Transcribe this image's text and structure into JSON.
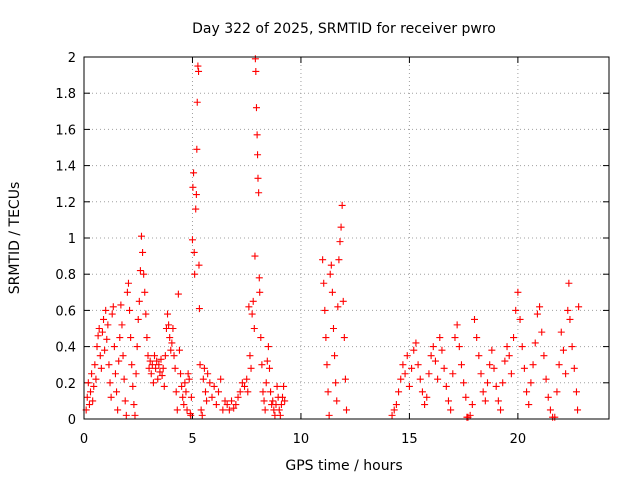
{
  "chart_data": {
    "type": "scatter",
    "title": "Day 322 of 2025, SRMTID for receiver pwro",
    "xlabel": "GPS time / hours",
    "ylabel": "SRMTID / TECUs",
    "xlim": [
      0,
      24.2
    ],
    "ylim": [
      0,
      2
    ],
    "x_ticks": [
      0,
      5,
      10,
      15,
      20
    ],
    "x_tick_labels": [
      "0",
      "5",
      "10",
      "15",
      "20"
    ],
    "y_ticks": [
      0,
      0.2,
      0.4,
      0.6,
      0.8,
      1,
      1.2,
      1.4,
      1.6,
      1.8,
      2
    ],
    "y_tick_labels": [
      "0",
      "0.2",
      "0.4",
      "0.6",
      "0.8",
      "1",
      "1.2",
      "1.4",
      "1.6",
      "1.8",
      "2"
    ],
    "grid": true,
    "marker": "+",
    "color": "#ff0000",
    "series": [
      {
        "name": "SRMTID",
        "points": [
          [
            0.1,
            0.05
          ],
          [
            0.15,
            0.12
          ],
          [
            0.2,
            0.2
          ],
          [
            0.25,
            0.08
          ],
          [
            0.3,
            0.15
          ],
          [
            0.35,
            0.25
          ],
          [
            0.4,
            0.1
          ],
          [
            0.45,
            0.18
          ],
          [
            0.5,
            0.3
          ],
          [
            0.55,
            0.22
          ],
          [
            0.6,
            0.4
          ],
          [
            0.65,
            0.46
          ],
          [
            0.7,
            0.5
          ],
          [
            0.75,
            0.35
          ],
          [
            0.8,
            0.28
          ],
          [
            0.85,
            0.48
          ],
          [
            0.9,
            0.55
          ],
          [
            0.95,
            0.38
          ],
          [
            1.0,
            0.6
          ],
          [
            1.05,
            0.44
          ],
          [
            1.1,
            0.52
          ],
          [
            1.15,
            0.3
          ],
          [
            1.2,
            0.2
          ],
          [
            1.25,
            0.12
          ],
          [
            1.3,
            0.58
          ],
          [
            1.35,
            0.62
          ],
          [
            1.4,
            0.4
          ],
          [
            1.45,
            0.25
          ],
          [
            1.5,
            0.15
          ],
          [
            1.55,
            0.05
          ],
          [
            1.6,
            0.32
          ],
          [
            1.65,
            0.45
          ],
          [
            1.7,
            0.63
          ],
          [
            1.75,
            0.52
          ],
          [
            1.8,
            0.35
          ],
          [
            1.85,
            0.22
          ],
          [
            1.9,
            0.1
          ],
          [
            1.95,
            0.02
          ],
          [
            2.0,
            0.7
          ],
          [
            2.05,
            0.75
          ],
          [
            2.1,
            0.6
          ],
          [
            2.15,
            0.45
          ],
          [
            2.2,
            0.3
          ],
          [
            2.25,
            0.18
          ],
          [
            2.3,
            0.08
          ],
          [
            2.35,
            0.02
          ],
          [
            2.4,
            0.25
          ],
          [
            2.45,
            0.4
          ],
          [
            2.5,
            0.55
          ],
          [
            2.55,
            0.65
          ],
          [
            2.6,
            0.82
          ],
          [
            2.65,
            1.01
          ],
          [
            2.7,
            0.92
          ],
          [
            2.75,
            0.8
          ],
          [
            2.8,
            0.7
          ],
          [
            2.85,
            0.58
          ],
          [
            2.9,
            0.45
          ],
          [
            2.95,
            0.35
          ],
          [
            3.0,
            0.28
          ],
          [
            3.05,
            0.32
          ],
          [
            3.1,
            0.25
          ],
          [
            3.15,
            0.3
          ],
          [
            3.2,
            0.2
          ],
          [
            3.25,
            0.35
          ],
          [
            3.3,
            0.28
          ],
          [
            3.35,
            0.32
          ],
          [
            3.4,
            0.22
          ],
          [
            3.45,
            0.3
          ],
          [
            3.5,
            0.26
          ],
          [
            3.55,
            0.33
          ],
          [
            3.6,
            0.24
          ],
          [
            3.65,
            0.28
          ],
          [
            3.7,
            0.18
          ],
          [
            3.75,
            0.35
          ],
          [
            3.8,
            0.5
          ],
          [
            3.85,
            0.58
          ],
          [
            3.9,
            0.52
          ],
          [
            3.95,
            0.45
          ],
          [
            4.0,
            0.38
          ],
          [
            4.05,
            0.42
          ],
          [
            4.1,
            0.5
          ],
          [
            4.15,
            0.35
          ],
          [
            4.2,
            0.28
          ],
          [
            4.25,
            0.15
          ],
          [
            4.3,
            0.05
          ],
          [
            4.35,
            0.69
          ],
          [
            4.4,
            0.38
          ],
          [
            4.45,
            0.25
          ],
          [
            4.5,
            0.18
          ],
          [
            4.55,
            0.12
          ],
          [
            4.6,
            0.08
          ],
          [
            4.65,
            0.2
          ],
          [
            4.7,
            0.15
          ],
          [
            4.75,
            0.05
          ],
          [
            4.8,
            0.25
          ],
          [
            4.85,
            0.22
          ],
          [
            4.9,
            0.03
          ],
          [
            4.92,
            0.02
          ],
          [
            4.95,
            0.12
          ],
          [
            5.0,
            0.99
          ],
          [
            5.02,
            1.28
          ],
          [
            5.05,
            1.36
          ],
          [
            5.08,
            0.92
          ],
          [
            5.1,
            0.8
          ],
          [
            5.15,
            1.16
          ],
          [
            5.18,
            1.24
          ],
          [
            5.2,
            1.49
          ],
          [
            5.22,
            1.75
          ],
          [
            5.25,
            1.95
          ],
          [
            5.28,
            1.92
          ],
          [
            5.3,
            0.85
          ],
          [
            5.32,
            0.61
          ],
          [
            5.35,
            0.3
          ],
          [
            5.4,
            0.05
          ],
          [
            5.45,
            0.02
          ],
          [
            5.5,
            0.22
          ],
          [
            5.55,
            0.28
          ],
          [
            5.6,
            0.15
          ],
          [
            5.65,
            0.1
          ],
          [
            5.7,
            0.25
          ],
          [
            5.8,
            0.2
          ],
          [
            5.9,
            0.12
          ],
          [
            6.0,
            0.18
          ],
          [
            6.1,
            0.08
          ],
          [
            6.2,
            0.15
          ],
          [
            6.3,
            0.22
          ],
          [
            6.4,
            0.05
          ],
          [
            6.5,
            0.1
          ],
          [
            6.6,
            0.08
          ],
          [
            6.7,
            0.05
          ],
          [
            6.8,
            0.1
          ],
          [
            6.9,
            0.06
          ],
          [
            7.0,
            0.08
          ],
          [
            7.1,
            0.12
          ],
          [
            7.2,
            0.15
          ],
          [
            7.3,
            0.2
          ],
          [
            7.4,
            0.18
          ],
          [
            7.5,
            0.22
          ],
          [
            7.55,
            0.15
          ],
          [
            7.6,
            0.62
          ],
          [
            7.65,
            0.35
          ],
          [
            7.7,
            0.28
          ],
          [
            7.75,
            0.58
          ],
          [
            7.8,
            0.65
          ],
          [
            7.85,
            0.5
          ],
          [
            7.88,
            0.9
          ],
          [
            7.9,
            1.99
          ],
          [
            7.92,
            1.92
          ],
          [
            7.95,
            1.72
          ],
          [
            7.98,
            1.57
          ],
          [
            8.0,
            1.46
          ],
          [
            8.02,
            1.33
          ],
          [
            8.05,
            1.25
          ],
          [
            8.08,
            0.78
          ],
          [
            8.1,
            0.7
          ],
          [
            8.15,
            0.45
          ],
          [
            8.2,
            0.3
          ],
          [
            8.25,
            0.15
          ],
          [
            8.3,
            0.1
          ],
          [
            8.35,
            0.05
          ],
          [
            8.4,
            0.2
          ],
          [
            8.45,
            0.32
          ],
          [
            8.5,
            0.4
          ],
          [
            8.55,
            0.28
          ],
          [
            8.6,
            0.15
          ],
          [
            8.65,
            0.08
          ],
          [
            8.7,
            0.1
          ],
          [
            8.75,
            0.05
          ],
          [
            8.8,
            0.02
          ],
          [
            8.85,
            0.08
          ],
          [
            8.9,
            0.18
          ],
          [
            8.95,
            0.12
          ],
          [
            9.0,
            0.05
          ],
          [
            9.05,
            0.02
          ],
          [
            9.1,
            0.08
          ],
          [
            9.15,
            0.12
          ],
          [
            9.2,
            0.18
          ],
          [
            9.25,
            0.1
          ],
          [
            11.0,
            0.88
          ],
          [
            11.05,
            0.75
          ],
          [
            11.1,
            0.6
          ],
          [
            11.15,
            0.45
          ],
          [
            11.2,
            0.3
          ],
          [
            11.25,
            0.15
          ],
          [
            11.3,
            0.02
          ],
          [
            11.35,
            0.8
          ],
          [
            11.4,
            0.85
          ],
          [
            11.45,
            0.7
          ],
          [
            11.5,
            0.5
          ],
          [
            11.55,
            0.35
          ],
          [
            11.6,
            0.2
          ],
          [
            11.65,
            0.1
          ],
          [
            11.7,
            0.62
          ],
          [
            11.75,
            0.88
          ],
          [
            11.8,
            0.98
          ],
          [
            11.85,
            1.06
          ],
          [
            11.9,
            1.18
          ],
          [
            11.95,
            0.65
          ],
          [
            12.0,
            0.45
          ],
          [
            12.05,
            0.22
          ],
          [
            12.1,
            0.05
          ],
          [
            14.2,
            0.02
          ],
          [
            14.3,
            0.05
          ],
          [
            14.4,
            0.08
          ],
          [
            14.5,
            0.15
          ],
          [
            14.6,
            0.22
          ],
          [
            14.7,
            0.3
          ],
          [
            14.8,
            0.25
          ],
          [
            14.9,
            0.35
          ],
          [
            15.0,
            0.18
          ],
          [
            15.1,
            0.28
          ],
          [
            15.2,
            0.38
          ],
          [
            15.3,
            0.42
          ],
          [
            15.4,
            0.3
          ],
          [
            15.5,
            0.22
          ],
          [
            15.6,
            0.15
          ],
          [
            15.7,
            0.08
          ],
          [
            15.8,
            0.12
          ],
          [
            15.9,
            0.25
          ],
          [
            16.0,
            0.35
          ],
          [
            16.1,
            0.4
          ],
          [
            16.2,
            0.32
          ],
          [
            16.3,
            0.22
          ],
          [
            16.4,
            0.45
          ],
          [
            16.5,
            0.38
          ],
          [
            16.6,
            0.28
          ],
          [
            16.7,
            0.18
          ],
          [
            16.8,
            0.1
          ],
          [
            16.9,
            0.05
          ],
          [
            17.0,
            0.25
          ],
          [
            17.1,
            0.45
          ],
          [
            17.2,
            0.52
          ],
          [
            17.3,
            0.4
          ],
          [
            17.4,
            0.3
          ],
          [
            17.5,
            0.2
          ],
          [
            17.6,
            0.12
          ],
          [
            17.65,
            0.01
          ],
          [
            17.7,
            0.01
          ],
          [
            17.8,
            0.02
          ],
          [
            17.9,
            0.08
          ],
          [
            18.0,
            0.55
          ],
          [
            18.1,
            0.45
          ],
          [
            18.2,
            0.35
          ],
          [
            18.3,
            0.25
          ],
          [
            18.4,
            0.15
          ],
          [
            18.5,
            0.1
          ],
          [
            18.6,
            0.2
          ],
          [
            18.7,
            0.3
          ],
          [
            18.8,
            0.38
          ],
          [
            18.9,
            0.28
          ],
          [
            19.0,
            0.18
          ],
          [
            19.1,
            0.1
          ],
          [
            19.2,
            0.05
          ],
          [
            19.3,
            0.2
          ],
          [
            19.4,
            0.32
          ],
          [
            19.5,
            0.4
          ],
          [
            19.6,
            0.35
          ],
          [
            19.7,
            0.25
          ],
          [
            19.8,
            0.45
          ],
          [
            19.9,
            0.6
          ],
          [
            20.0,
            0.7
          ],
          [
            20.1,
            0.55
          ],
          [
            20.2,
            0.4
          ],
          [
            20.3,
            0.28
          ],
          [
            20.4,
            0.15
          ],
          [
            20.5,
            0.08
          ],
          [
            20.6,
            0.2
          ],
          [
            20.7,
            0.3
          ],
          [
            20.8,
            0.42
          ],
          [
            20.9,
            0.58
          ],
          [
            21.0,
            0.62
          ],
          [
            21.1,
            0.48
          ],
          [
            21.2,
            0.35
          ],
          [
            21.3,
            0.22
          ],
          [
            21.4,
            0.12
          ],
          [
            21.5,
            0.05
          ],
          [
            21.6,
            0.01
          ],
          [
            21.7,
            0.01
          ],
          [
            21.8,
            0.15
          ],
          [
            21.9,
            0.3
          ],
          [
            22.0,
            0.48
          ],
          [
            22.1,
            0.38
          ],
          [
            22.2,
            0.25
          ],
          [
            22.3,
            0.6
          ],
          [
            22.35,
            0.75
          ],
          [
            22.4,
            0.55
          ],
          [
            22.5,
            0.4
          ],
          [
            22.6,
            0.28
          ],
          [
            22.7,
            0.15
          ],
          [
            22.75,
            0.05
          ],
          [
            22.8,
            0.62
          ]
        ]
      }
    ]
  }
}
